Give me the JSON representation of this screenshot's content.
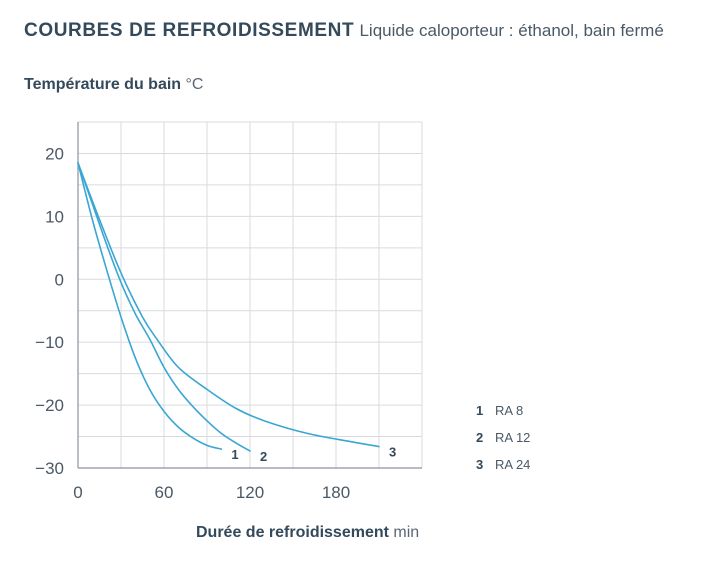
{
  "header": {
    "title": "COURBES DE REFROIDISSEMENT",
    "subtitle": "Liquide caloporteur : éthanol, bain fermé"
  },
  "axes": {
    "y_label": "Température du bain",
    "y_unit": "°C",
    "x_label": "Durée de refroidissement",
    "x_unit": "min"
  },
  "colors": {
    "line": "#3aa6d4",
    "grid": "#d7dbdf",
    "axis": "#8a949c"
  },
  "chart_data": {
    "type": "line",
    "title": "COURBES DE REFROIDISSEMENT",
    "subtitle": "Liquide caloporteur : éthanol, bain fermé",
    "xlabel": "Durée de refroidissement min",
    "ylabel": "Température du bain °C",
    "xlim": [
      0,
      240
    ],
    "ylim": [
      -30,
      25
    ],
    "x_ticks": [
      0,
      60,
      120,
      180
    ],
    "x_tick_labels": [
      "0",
      "60",
      "120",
      "180"
    ],
    "y_ticks": [
      20,
      10,
      0,
      -10,
      -20,
      -30
    ],
    "y_tick_labels": [
      "20",
      "10",
      "0",
      "−10",
      "−20",
      "−30"
    ],
    "x_grid_step": 30,
    "y_grid_step": 5,
    "grid": true,
    "legend_position": "right",
    "series": [
      {
        "id": "1",
        "name": "RA 8",
        "x": [
          0,
          10,
          20,
          30,
          40,
          50,
          60,
          70,
          80,
          90,
          100
        ],
        "y": [
          18.5,
          9.5,
          1.5,
          -6,
          -12.5,
          -17.5,
          -21,
          -23.5,
          -25.2,
          -26.4,
          -27
        ],
        "end_label": "1"
      },
      {
        "id": "2",
        "name": "RA 12",
        "x": [
          0,
          10,
          20,
          30,
          40,
          50,
          60,
          70,
          80,
          90,
          100,
          110,
          120
        ],
        "y": [
          18.5,
          12,
          5.5,
          -0.5,
          -5.5,
          -9.5,
          -14,
          -17.5,
          -20.2,
          -22.5,
          -24.5,
          -26,
          -27.3
        ],
        "end_label": "2"
      },
      {
        "id": "3",
        "name": "RA 24",
        "x": [
          0,
          15,
          30,
          45,
          55,
          70,
          90,
          110,
          130,
          160,
          190,
          210
        ],
        "y": [
          18.5,
          9.5,
          1,
          -6,
          -9.5,
          -14,
          -17.5,
          -20.5,
          -22.5,
          -24.5,
          -25.8,
          -26.6
        ],
        "end_label": "3"
      }
    ]
  }
}
